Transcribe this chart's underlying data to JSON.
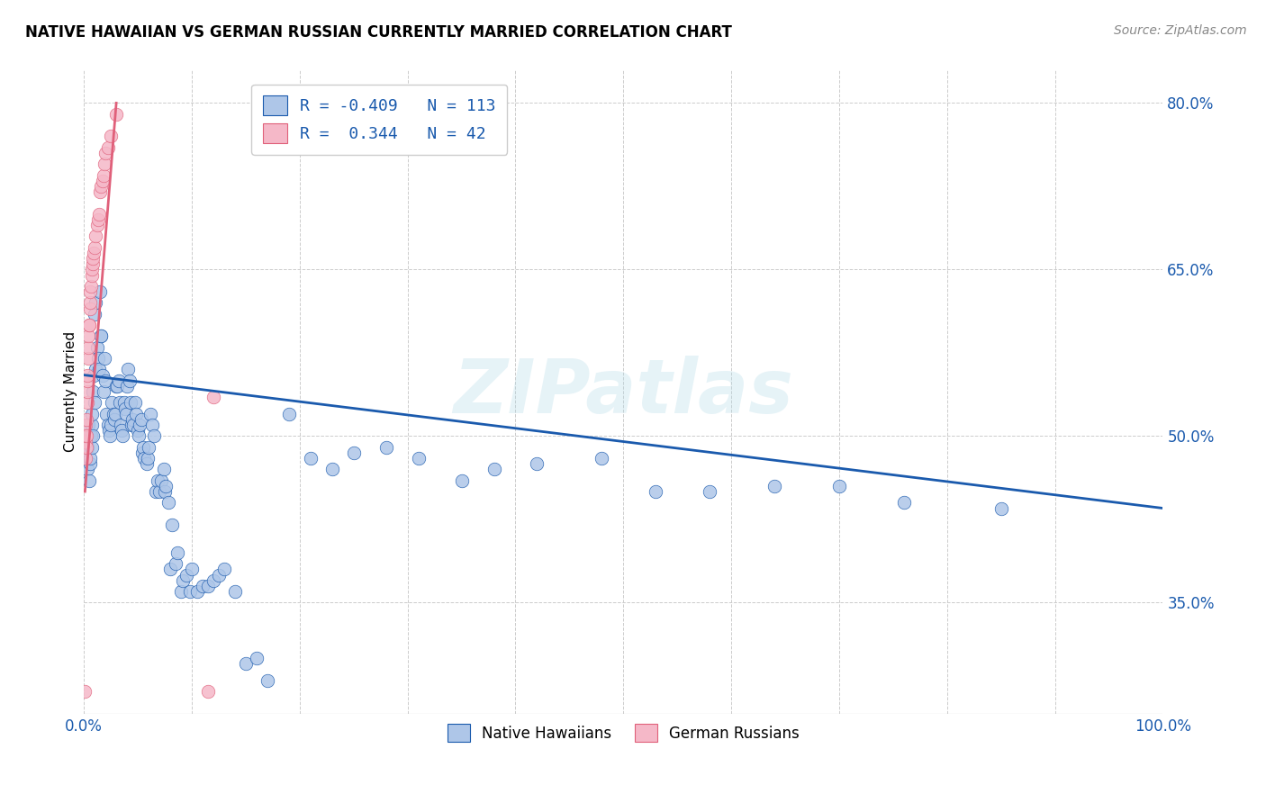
{
  "title": "NATIVE HAWAIIAN VS GERMAN RUSSIAN CURRENTLY MARRIED CORRELATION CHART",
  "source": "Source: ZipAtlas.com",
  "ylabel": "Currently Married",
  "yticks": [
    35.0,
    50.0,
    65.0,
    80.0
  ],
  "ytick_labels": [
    "35.0%",
    "50.0%",
    "65.0%",
    "80.0%"
  ],
  "xtick_labels": [
    "0.0%",
    "100.0%"
  ],
  "watermark": "ZIPatlas",
  "legend_blue_r": "-0.409",
  "legend_blue_n": "113",
  "legend_pink_r": "0.344",
  "legend_pink_n": "42",
  "blue_color": "#aec6e8",
  "blue_line_color": "#1a5aad",
  "pink_color": "#f5b8c8",
  "pink_line_color": "#e0607a",
  "blue_scatter_x": [
    0.1,
    0.2,
    0.3,
    0.35,
    0.4,
    0.5,
    0.55,
    0.6,
    0.65,
    0.7,
    0.72,
    0.75,
    0.8,
    0.85,
    0.9,
    0.95,
    1.0,
    1.05,
    1.1,
    1.2,
    1.3,
    1.4,
    1.5,
    1.55,
    1.6,
    1.7,
    1.8,
    1.9,
    2.0,
    2.1,
    2.2,
    2.3,
    2.4,
    2.5,
    2.6,
    2.7,
    2.8,
    2.9,
    3.0,
    3.1,
    3.2,
    3.3,
    3.4,
    3.5,
    3.6,
    3.7,
    3.8,
    3.9,
    4.0,
    4.1,
    4.2,
    4.3,
    4.4,
    4.5,
    4.6,
    4.7,
    4.8,
    5.0,
    5.1,
    5.2,
    5.3,
    5.4,
    5.5,
    5.6,
    5.8,
    5.9,
    6.0,
    6.2,
    6.3,
    6.5,
    6.7,
    6.8,
    7.0,
    7.2,
    7.4,
    7.5,
    7.6,
    7.8,
    8.0,
    8.2,
    8.5,
    8.7,
    9.0,
    9.2,
    9.5,
    9.8,
    10.0,
    10.5,
    11.0,
    11.5,
    12.0,
    12.5,
    13.0,
    14.0,
    15.0,
    16.0,
    17.0,
    19.0,
    21.0,
    23.0,
    25.0,
    28.0,
    31.0,
    35.0,
    38.0,
    42.0,
    48.0,
    53.0,
    58.0,
    64.0,
    70.0,
    76.0,
    85.0
  ],
  "blue_scatter_y": [
    48.5,
    50.0,
    49.0,
    47.0,
    51.0,
    46.0,
    47.5,
    48.0,
    50.0,
    51.0,
    52.0,
    49.0,
    54.0,
    50.0,
    55.5,
    53.0,
    61.0,
    62.0,
    56.0,
    58.0,
    57.0,
    56.0,
    63.0,
    59.0,
    59.0,
    55.5,
    54.0,
    57.0,
    55.0,
    52.0,
    51.0,
    50.5,
    50.0,
    51.0,
    53.0,
    52.0,
    51.5,
    52.0,
    54.5,
    54.5,
    55.0,
    53.0,
    51.0,
    50.5,
    50.0,
    53.0,
    52.5,
    52.0,
    54.5,
    56.0,
    55.0,
    53.0,
    51.0,
    51.5,
    51.0,
    53.0,
    52.0,
    50.5,
    50.0,
    51.0,
    51.5,
    48.5,
    49.0,
    48.0,
    47.5,
    48.0,
    49.0,
    52.0,
    51.0,
    50.0,
    45.0,
    46.0,
    45.0,
    46.0,
    47.0,
    45.0,
    45.5,
    44.0,
    38.0,
    42.0,
    38.5,
    39.5,
    36.0,
    37.0,
    37.5,
    36.0,
    38.0,
    36.0,
    36.5,
    36.5,
    37.0,
    37.5,
    38.0,
    36.0,
    29.5,
    30.0,
    28.0,
    52.0,
    48.0,
    47.0,
    48.5,
    49.0,
    48.0,
    46.0,
    47.0,
    47.5,
    48.0,
    45.0,
    45.0,
    45.5,
    45.5,
    44.0,
    43.5
  ],
  "pink_scatter_x": [
    0.1,
    0.12,
    0.14,
    0.16,
    0.18,
    0.2,
    0.22,
    0.25,
    0.28,
    0.3,
    0.32,
    0.35,
    0.38,
    0.4,
    0.43,
    0.46,
    0.5,
    0.53,
    0.56,
    0.6,
    0.64,
    0.7,
    0.75,
    0.8,
    0.85,
    0.9,
    1.0,
    1.1,
    1.2,
    1.3,
    1.4,
    1.5,
    1.6,
    1.7,
    1.8,
    1.9,
    2.0,
    2.2,
    2.5,
    3.0,
    11.5,
    12.0
  ],
  "pink_scatter_y": [
    27.0,
    48.0,
    49.5,
    50.0,
    51.0,
    49.0,
    50.0,
    51.5,
    53.0,
    54.0,
    55.0,
    55.5,
    57.0,
    58.0,
    59.0,
    60.0,
    60.0,
    61.5,
    62.0,
    63.0,
    63.5,
    64.5,
    65.0,
    65.5,
    66.0,
    66.5,
    67.0,
    68.0,
    69.0,
    69.5,
    70.0,
    72.0,
    72.5,
    73.0,
    73.5,
    74.5,
    75.5,
    76.0,
    77.0,
    79.0,
    27.0,
    53.5
  ],
  "blue_trend_x": [
    0.0,
    100.0
  ],
  "blue_trend_y": [
    55.5,
    43.5
  ],
  "pink_trend_x": [
    0.1,
    3.0
  ],
  "pink_trend_y": [
    45.0,
    80.0
  ],
  "xmin": 0.0,
  "xmax": 100.0,
  "ymin": 25.0,
  "ymax": 83.0
}
